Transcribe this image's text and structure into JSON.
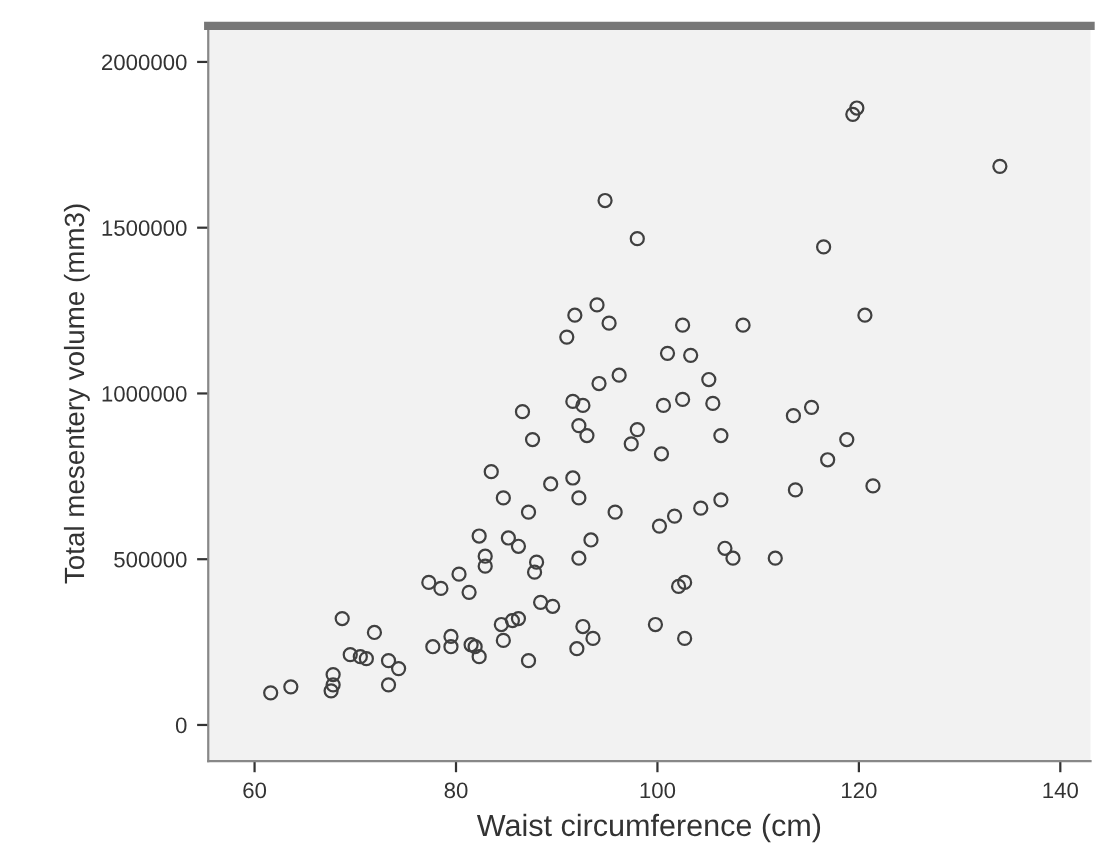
{
  "chart_data": {
    "type": "scatter",
    "xlabel": "Waist circumference (cm)",
    "ylabel": "Total mesentery volume (mm3)",
    "xlim": [
      55.4,
      143
    ],
    "ylim": [
      -109000,
      2109000
    ],
    "xticks": [
      60,
      80,
      100,
      120,
      140
    ],
    "yticks": [
      0,
      500000,
      1000000,
      1500000,
      2000000
    ],
    "grid": false,
    "marker": "circle",
    "series": [
      {
        "color": "#404040",
        "x": [
          61.6,
          63.6,
          67.6,
          67.8,
          67.8,
          68.7,
          69.5,
          71.1,
          70.5,
          71.9,
          73.3,
          73.3,
          74.3,
          77.3,
          78.5,
          80.3,
          81.3,
          77.7,
          79.5,
          79.5,
          81.5,
          82.3,
          81.9,
          82.3,
          82.9,
          82.9,
          83.5,
          84.7,
          85.2,
          86.2,
          84.5,
          84.7,
          85.6,
          86.2,
          86.6,
          87.6,
          87.2,
          87.2,
          88.0,
          87.8,
          88.4,
          89.6,
          89.4,
          91.6,
          92.2,
          91.6,
          92.6,
          92.2,
          93.0,
          92.2,
          93.4,
          92.6,
          93.6,
          92.0,
          95.8,
          94.2,
          96.2,
          97.4,
          98.0,
          94.8,
          98.0,
          91.8,
          94.0,
          95.2,
          91.0,
          119.8,
          119.4,
          134.0,
          116.5,
          120.6,
          102.5,
          108.5,
          101.0,
          103.3,
          105.1,
          100.6,
          102.5,
          105.5,
          100.4,
          106.3,
          113.5,
          115.3,
          118.8,
          116.9,
          121.4,
          113.7,
          100.2,
          101.7,
          104.3,
          106.3,
          106.7,
          107.5,
          111.7,
          102.1,
          102.7,
          99.8,
          102.7
        ],
        "values": [
          97000,
          115000,
          103000,
          121000,
          152000,
          321000,
          212000,
          200000,
          206000,
          279000,
          194000,
          121000,
          170000,
          430000,
          412000,
          455000,
          400000,
          236000,
          236000,
          267000,
          242000,
          206000,
          236000,
          570000,
          509000,
          479000,
          764000,
          685000,
          564000,
          539000,
          303000,
          255000,
          315000,
          321000,
          945000,
          861000,
          642000,
          194000,
          491000,
          461000,
          370000,
          358000,
          727000,
          745000,
          685000,
          976000,
          964000,
          903000,
          873000,
          503000,
          558000,
          297000,
          261000,
          230000,
          642000,
          1030000,
          1055000,
          848000,
          891000,
          1582000,
          1467000,
          1236000,
          1267000,
          1212000,
          1170000,
          1861000,
          1842000,
          1685000,
          1442000,
          1236000,
          1206000,
          1206000,
          1121000,
          1115000,
          1042000,
          964000,
          982000,
          970000,
          818000,
          873000,
          933000,
          958000,
          861000,
          800000,
          721000,
          709000,
          600000,
          630000,
          654000,
          679000,
          533000,
          503000,
          503000,
          418000,
          430000,
          303000,
          261000
        ]
      }
    ]
  }
}
